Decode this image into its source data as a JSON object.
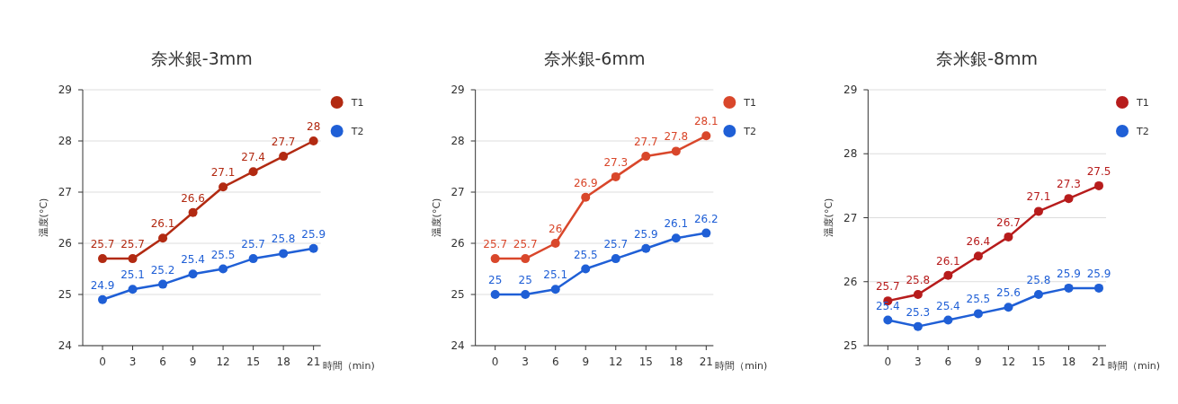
{
  "chart_data": [
    {
      "type": "line",
      "title": "奈米銀-3mm",
      "xlabel": "時間（min)",
      "ylabel": "溫度(°C)",
      "categories": [
        "0",
        "3",
        "6",
        "9",
        "12",
        "15",
        "18",
        "21"
      ],
      "ylim": [
        24,
        29
      ],
      "yticks": [
        24,
        25,
        26,
        27,
        28,
        29
      ],
      "grid": "y",
      "legend": "right",
      "marker": "circle",
      "data_labels": true,
      "series": [
        {
          "name": "T1",
          "color": "#b22a12",
          "values": [
            25.7,
            25.7,
            26.1,
            26.6,
            27.1,
            27.4,
            27.7,
            28
          ]
        },
        {
          "name": "T2",
          "color": "#1f5fd6",
          "values": [
            24.9,
            25.1,
            25.2,
            25.4,
            25.5,
            25.7,
            25.8,
            25.9
          ]
        }
      ]
    },
    {
      "type": "line",
      "title": "奈米銀-6mm",
      "xlabel": "時間（min)",
      "ylabel": "溫度(°C)",
      "categories": [
        "0",
        "3",
        "6",
        "9",
        "12",
        "15",
        "18",
        "21"
      ],
      "ylim": [
        24,
        29
      ],
      "yticks": [
        24,
        25,
        26,
        27,
        28,
        29
      ],
      "grid": "y",
      "legend": "right",
      "marker": "circle",
      "data_labels": true,
      "series": [
        {
          "name": "T1",
          "color": "#d9472b",
          "values": [
            25.7,
            25.7,
            26,
            26.9,
            27.3,
            27.7,
            27.8,
            28.1
          ]
        },
        {
          "name": "T2",
          "color": "#1f5fd6",
          "values": [
            25,
            25,
            25.1,
            25.5,
            25.7,
            25.9,
            26.1,
            26.2
          ]
        }
      ]
    },
    {
      "type": "line",
      "title": "奈米銀-8mm",
      "xlabel": "時間（min)",
      "ylabel": "溫度(°C)",
      "categories": [
        "0",
        "3",
        "6",
        "9",
        "12",
        "15",
        "18",
        "21"
      ],
      "ylim": [
        25,
        29
      ],
      "yticks": [
        25,
        26,
        27,
        28,
        29
      ],
      "grid": "y",
      "legend": "right",
      "marker": "circle",
      "data_labels": true,
      "series": [
        {
          "name": "T1",
          "color": "#b71c1c",
          "values": [
            25.7,
            25.8,
            26.1,
            26.4,
            26.7,
            27.1,
            27.3,
            27.5
          ]
        },
        {
          "name": "T2",
          "color": "#1f5fd6",
          "values": [
            25.4,
            25.3,
            25.4,
            25.5,
            25.6,
            25.8,
            25.9,
            25.9
          ]
        }
      ]
    }
  ]
}
